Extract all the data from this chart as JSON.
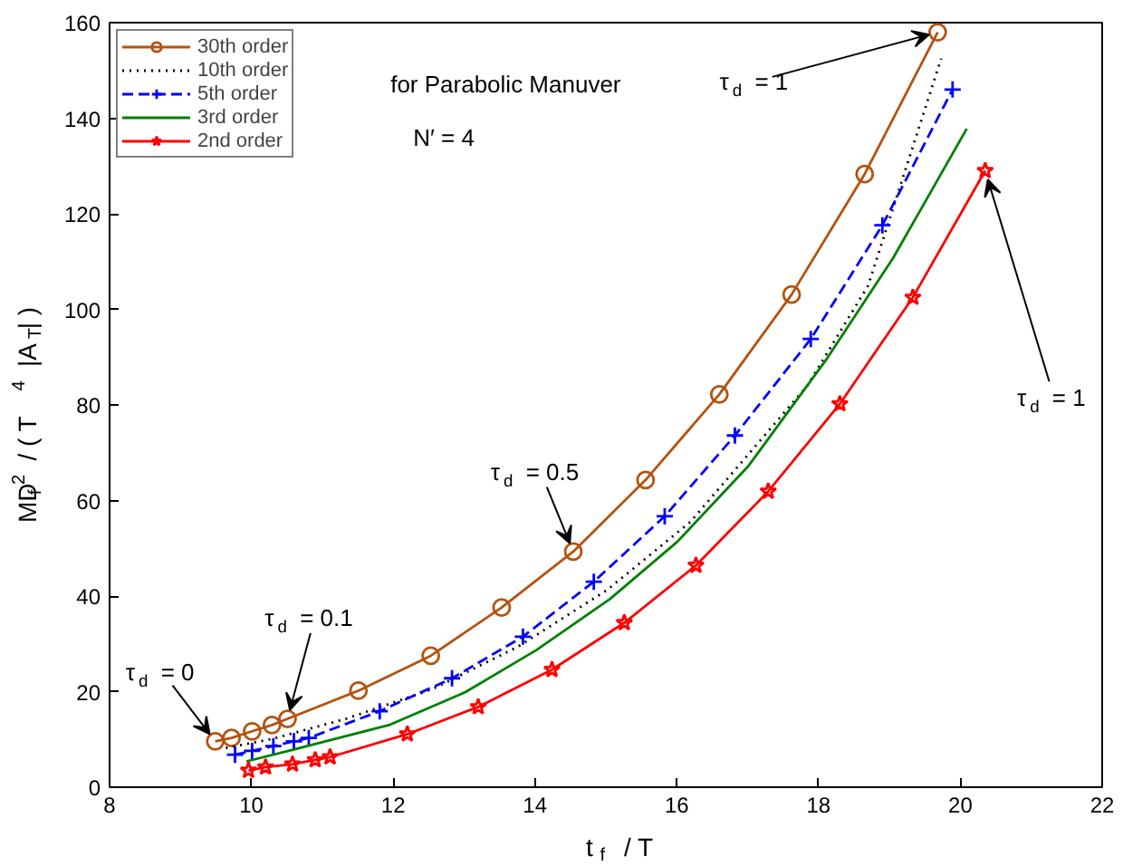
{
  "chart_data": {
    "type": "line",
    "xlabel": "t$_{f}$ / T",
    "ylabel": "MD$_{f}$$^{2}$ / ( T$^{4}$ |A$_{T}$| )",
    "xlim": [
      8,
      22
    ],
    "xticks": [
      8,
      10,
      12,
      14,
      16,
      18,
      20,
      22
    ],
    "ylim": [
      0,
      160
    ],
    "yticks": [
      0,
      20,
      40,
      60,
      80,
      100,
      120,
      140,
      160
    ],
    "grid": false,
    "legend": "top left",
    "series": [
      {
        "name": "30th order",
        "color": "#b5520f",
        "marker": "circle",
        "line_style": "solid",
        "x": [
          9.49,
          9.72,
          10.01,
          10.29,
          10.51,
          11.51,
          12.53,
          13.53,
          14.54,
          15.56,
          16.6,
          17.62,
          18.65,
          19.68
        ],
        "values": [
          9.6,
          10.3,
          11.7,
          13.0,
          14.3,
          20.2,
          27.5,
          37.6,
          49.3,
          64.3,
          82.2,
          103.1,
          128.3,
          158
        ]
      },
      {
        "name": "10th order",
        "color": "#000000",
        "marker": "none",
        "line_style": "dotted",
        "x": [
          9.64,
          10.29,
          11.33,
          12.55,
          13.76,
          15.02,
          16.19,
          17.84,
          18.7,
          19.73
        ],
        "values": [
          8.2,
          10.1,
          14.3,
          20.5,
          29.4,
          41.3,
          55.5,
          84,
          105,
          152.5
        ]
      },
      {
        "name": "5th order",
        "color": "#0000ff",
        "marker": "cross",
        "line_style": "dashed",
        "x": [
          9.77,
          10.01,
          10.31,
          10.6,
          10.81,
          11.81,
          12.83,
          13.83,
          14.83,
          15.83,
          16.82,
          17.89,
          18.9,
          19.89
        ],
        "values": [
          6.8,
          7.6,
          8.6,
          9.6,
          10.3,
          15.9,
          22.8,
          31.5,
          43.0,
          56.7,
          73.6,
          93.8,
          117.6,
          146
        ]
      },
      {
        "name": "3rd order",
        "color": "#008000",
        "marker": "none",
        "line_style": "solid",
        "x": [
          9.93,
          10.55,
          11.94,
          13.02,
          14.02,
          15.06,
          16.01,
          17.01,
          18.1,
          19.05,
          20.09
        ],
        "values": [
          5.4,
          7.7,
          13.0,
          19.9,
          28.7,
          39.4,
          51.4,
          67.2,
          89.3,
          110.7,
          137.8
        ]
      },
      {
        "name": "2nd order",
        "color": "#ff0000",
        "marker": "star",
        "line_style": "solid",
        "x": [
          9.96,
          10.2,
          10.58,
          10.9,
          11.11,
          12.2,
          13.2,
          14.24,
          15.26,
          16.27,
          17.29,
          18.3,
          19.33,
          20.35
        ],
        "values": [
          3.5,
          4.2,
          4.8,
          5.7,
          6.3,
          11.1,
          16.8,
          24.6,
          34.4,
          46.4,
          61.9,
          80.2,
          102.5,
          129
        ]
      }
    ],
    "annotations": [
      {
        "text": "τ$_{d}$ = 0",
        "x": 9.49,
        "y": 9.6
      },
      {
        "text": "τ$_{d}$ = 0.1",
        "x": 10.51,
        "y": 14.3
      },
      {
        "text": "τ$_{d}$ = 0.5",
        "x": 14.54,
        "y": 49.3
      },
      {
        "text": "τ$_{d}$ = 1",
        "x": 19.68,
        "y": 158
      },
      {
        "text": "τ$_{d}$ = 1",
        "x": 20.35,
        "y": 129
      },
      "for Parabolic Manuver",
      "N′ = 4"
    ]
  }
}
